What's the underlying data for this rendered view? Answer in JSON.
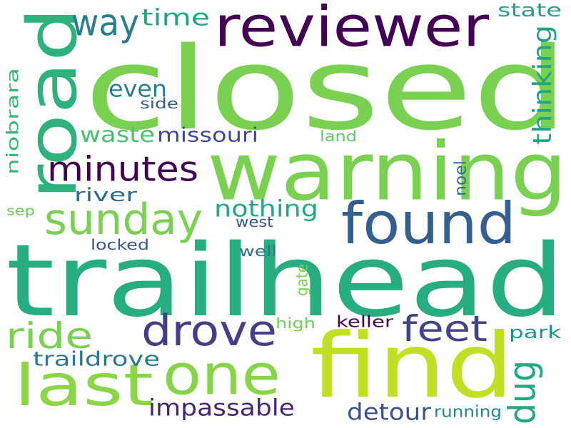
{
  "words": [
    {
      "text": "trailhead",
      "color": "#26ad81"
    },
    {
      "text": "closed",
      "color": "#7ad151"
    },
    {
      "text": "warning",
      "color": "#7ad151"
    },
    {
      "text": "find",
      "color": "#c2df23"
    },
    {
      "text": "road",
      "color": "#2db27d"
    },
    {
      "text": "reviewer",
      "color": "#440154"
    },
    {
      "text": "found",
      "color": "#355f8d"
    },
    {
      "text": "one",
      "color": "#86d549"
    },
    {
      "text": "drove",
      "color": "#433e85"
    },
    {
      "text": "last",
      "color": "#8bd646"
    },
    {
      "text": "minutes",
      "color": "#440154"
    },
    {
      "text": "sunday",
      "color": "#7ad151"
    },
    {
      "text": "feet",
      "color": "#414487"
    },
    {
      "text": "ride",
      "color": "#7ad151"
    },
    {
      "text": "way",
      "color": "#287d8e"
    },
    {
      "text": "dug",
      "color": "#22a884"
    },
    {
      "text": "impassable",
      "color": "#482475"
    },
    {
      "text": "detour",
      "color": "#3b528b"
    },
    {
      "text": "traildrove",
      "color": "#2a788e"
    },
    {
      "text": "nothing",
      "color": "#22a884"
    },
    {
      "text": "even",
      "color": "#287d8e"
    },
    {
      "text": "waste",
      "color": "#4ac16d"
    },
    {
      "text": "missouri",
      "color": "#3e4989"
    },
    {
      "text": "time",
      "color": "#20a486"
    },
    {
      "text": "thinking",
      "color": "#20a486"
    },
    {
      "text": "state",
      "color": "#2a9d8f"
    },
    {
      "text": "niobrara",
      "color": "#38b977"
    },
    {
      "text": "river",
      "color": "#31688e"
    },
    {
      "text": "park",
      "color": "#21918c"
    },
    {
      "text": "running",
      "color": "#25858e"
    },
    {
      "text": "keller",
      "color": "#440154"
    },
    {
      "text": "high",
      "color": "#6ece58"
    },
    {
      "text": "gate",
      "color": "#7ad151"
    },
    {
      "text": "noel",
      "color": "#2c728e"
    },
    {
      "text": "land",
      "color": "#5ec962"
    },
    {
      "text": "side",
      "color": "#355f8d"
    },
    {
      "text": "west",
      "color": "#3b528b"
    },
    {
      "text": "locked",
      "color": "#39568c"
    },
    {
      "text": "well",
      "color": "#2c728e"
    },
    {
      "text": "sep",
      "color": "#6ccd5a"
    }
  ]
}
